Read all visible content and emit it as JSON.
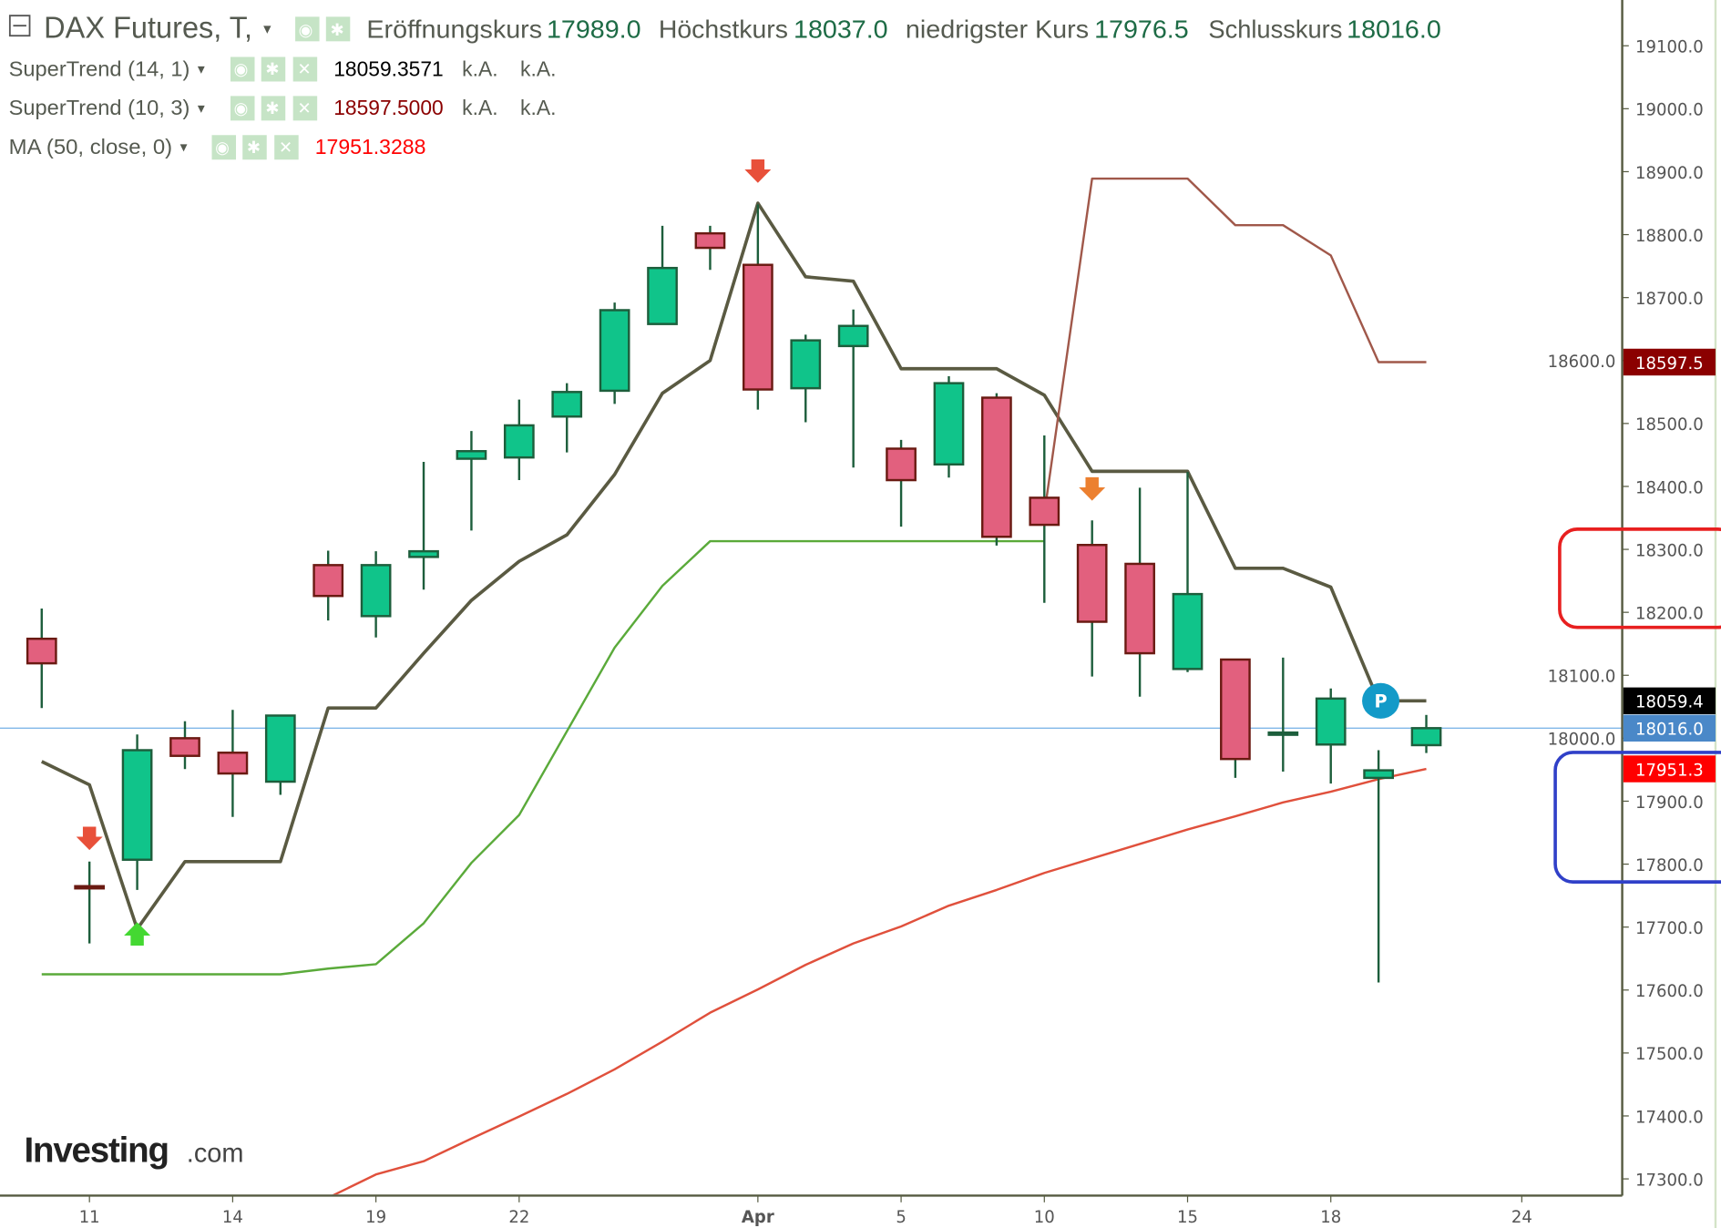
{
  "header": {
    "title": "DAX Futures, T,",
    "open_label": "Eröffnungskurs",
    "open_value": "17989.0",
    "high_label": "Höchstkurs",
    "high_value": "18037.0",
    "low_label": "niedrigster Kurs",
    "low_value": "17976.5",
    "close_label": "Schlusskurs",
    "close_value": "18016.0"
  },
  "indicators": [
    {
      "name": "SuperTrend (14, 1)",
      "value": "18059.3571",
      "extra1": "k.A.",
      "extra2": "k.A.",
      "color": "#000000"
    },
    {
      "name": "SuperTrend (10, 3)",
      "value": "18597.5000",
      "extra1": "k.A.",
      "extra2": "k.A.",
      "color": "#8b0000"
    },
    {
      "name": "MA (50, close, 0)",
      "value": "17951.3288",
      "color": "#ff0000"
    }
  ],
  "icons": {
    "eye": "◉",
    "gear": "✱",
    "close": "✕",
    "caret": "▾",
    "collapse": "⊟"
  },
  "logo": {
    "brand": "Investing",
    "suffix": ".com"
  },
  "marker": {
    "label": "P"
  },
  "price_labels": [
    {
      "text": "18597.5",
      "value": 18597.5,
      "color": "#8b0000"
    },
    {
      "text": "18059.4",
      "value": 18059.4,
      "color": "#000000"
    },
    {
      "text": "18016.0",
      "value": 18016.0,
      "color": "#4a88c8"
    },
    {
      "text": "17951.3",
      "value": 17951.3,
      "color": "#ff0000"
    }
  ],
  "chart_data": {
    "type": "candlestick",
    "title": "DAX Futures, T",
    "ylim": [
      17300,
      19100
    ],
    "y_ticks": [
      "19100.0",
      "19000.0",
      "18900.0",
      "18800.0",
      "18700.0",
      "18600.0",
      "18500.0",
      "18400.0",
      "18300.0",
      "18200.0",
      "18100.0",
      "18000.0",
      "17900.0",
      "17800.0",
      "17700.0",
      "17600.0",
      "17500.0",
      "17400.0",
      "17300.0"
    ],
    "y_tick_values": [
      19100,
      19000,
      18900,
      18800,
      18700,
      18600,
      18500,
      18400,
      18300,
      18200,
      18100,
      18000,
      17900,
      17800,
      17700,
      17600,
      17500,
      17400,
      17300
    ],
    "x_labels": [
      {
        "text": "11",
        "index": 1
      },
      {
        "text": "14",
        "index": 4
      },
      {
        "text": "19",
        "index": 7
      },
      {
        "text": "22",
        "index": 10
      },
      {
        "text": "Apr",
        "index": 15,
        "bold": true
      },
      {
        "text": "5",
        "index": 18
      },
      {
        "text": "10",
        "index": 21
      },
      {
        "text": "15",
        "index": 24
      },
      {
        "text": "18",
        "index": 27
      },
      {
        "text": "24",
        "index": 31
      }
    ],
    "candles": [
      [
        18158,
        18206,
        18048,
        18119
      ],
      [
        17765,
        17804,
        17674,
        17762
      ],
      [
        17807,
        18006,
        17759,
        17981
      ],
      [
        18000,
        18027,
        17951,
        17972
      ],
      [
        17977,
        18045,
        17875,
        17944
      ],
      [
        17931,
        18036,
        17910,
        18036
      ],
      [
        18275,
        18298,
        18187,
        18226
      ],
      [
        18194,
        18297,
        18160,
        18275
      ],
      [
        18288,
        18439,
        18236,
        18297
      ],
      [
        18444,
        18488,
        18330,
        18456
      ],
      [
        18446,
        18538,
        18410,
        18497
      ],
      [
        18511,
        18564,
        18454,
        18550
      ],
      [
        18552,
        18692,
        18531,
        18680
      ],
      [
        18658,
        18814,
        18657,
        18747
      ],
      [
        18802,
        18814,
        18744,
        18779
      ],
      [
        18752,
        18848,
        18522,
        18554
      ],
      [
        18556,
        18641,
        18502,
        18632
      ],
      [
        18623,
        18681,
        18430,
        18655
      ],
      [
        18460,
        18474,
        18336,
        18410
      ],
      [
        18435,
        18575,
        18414,
        18564
      ],
      [
        18541,
        18548,
        18306,
        18320
      ],
      [
        18382,
        18481,
        18215,
        18339
      ],
      [
        18307,
        18346,
        18098,
        18185
      ],
      [
        18277,
        18398,
        18066,
        18135
      ],
      [
        18110,
        18423,
        18105,
        18229
      ],
      [
        18125,
        18125,
        17937,
        17967
      ],
      [
        18009,
        18128,
        17947,
        18009
      ],
      [
        17990,
        18079,
        17928,
        18063
      ],
      [
        17937,
        17981,
        17612,
        17949
      ],
      [
        17989,
        18037,
        17976.5,
        18016
      ]
    ],
    "candle_fields": [
      "open",
      "high",
      "low",
      "close"
    ],
    "series": [
      {
        "name": "SuperTrend (14, 1)",
        "color": "#5a5a42",
        "points": [
          [
            0,
            17963
          ],
          [
            1,
            17926
          ],
          [
            2,
            17697
          ],
          [
            3,
            17804
          ],
          [
            5,
            17804
          ],
          [
            6,
            18048
          ],
          [
            7,
            18048
          ],
          [
            8,
            18135
          ],
          [
            9,
            18219
          ],
          [
            10,
            18281
          ],
          [
            11,
            18323
          ],
          [
            12,
            18419
          ],
          [
            13,
            18548
          ],
          [
            14,
            18600
          ],
          [
            15,
            18850
          ],
          [
            16,
            18733
          ],
          [
            17,
            18726
          ],
          [
            18,
            18587
          ],
          [
            20,
            18587
          ],
          [
            21,
            18545
          ],
          [
            22,
            18424
          ],
          [
            24,
            18424
          ],
          [
            25,
            18270
          ],
          [
            26,
            18270
          ],
          [
            27,
            18240
          ],
          [
            28,
            18059.4
          ],
          [
            29,
            18059.4
          ]
        ]
      },
      {
        "name": "SuperTrend (10, 3) support",
        "color": "#5aaa3a",
        "points": [
          [
            0,
            17625
          ],
          [
            5,
            17625
          ],
          [
            6,
            17634
          ],
          [
            7,
            17641
          ],
          [
            8,
            17706
          ],
          [
            9,
            17802
          ],
          [
            10,
            17878
          ],
          [
            11,
            18011
          ],
          [
            12,
            18144
          ],
          [
            13,
            18242
          ],
          [
            14,
            18313
          ],
          [
            21,
            18313
          ]
        ]
      },
      {
        "name": "SuperTrend (10, 3) resistance",
        "color": "#a0584a",
        "points": [
          [
            21,
            18357
          ],
          [
            22,
            18889
          ],
          [
            24,
            18889
          ],
          [
            25,
            18815
          ],
          [
            26,
            18815
          ],
          [
            27,
            18767
          ],
          [
            28,
            18597.5
          ],
          [
            29,
            18597.5
          ]
        ]
      },
      {
        "name": "MA (50, close, 0)",
        "color": "#e0503c",
        "points": [
          [
            6,
            17270
          ],
          [
            7,
            17307
          ],
          [
            8,
            17328
          ],
          [
            9,
            17364
          ],
          [
            10,
            17399
          ],
          [
            11,
            17435
          ],
          [
            12,
            17474
          ],
          [
            13,
            17518
          ],
          [
            14,
            17564
          ],
          [
            15,
            17601
          ],
          [
            16,
            17640
          ],
          [
            17,
            17674
          ],
          [
            18,
            17701
          ],
          [
            19,
            17734
          ],
          [
            20,
            17759
          ],
          [
            21,
            17786
          ],
          [
            22,
            17809
          ],
          [
            23,
            17832
          ],
          [
            24,
            17855
          ],
          [
            25,
            17876
          ],
          [
            26,
            17898
          ],
          [
            27,
            17915
          ],
          [
            28,
            17935
          ],
          [
            29,
            17951.3
          ]
        ]
      }
    ],
    "signals": [
      {
        "type": "sell",
        "index": 1,
        "value": 17840,
        "color": "#e8503a"
      },
      {
        "type": "buy",
        "index": 2,
        "value": 17690,
        "color": "#44d832"
      },
      {
        "type": "sell",
        "index": 15,
        "value": 18900,
        "color": "#e8503a"
      },
      {
        "type": "sell",
        "index": 22,
        "value": 18395,
        "color": "#ec8030"
      }
    ],
    "marker_index": 28,
    "marker_value": 18059.4,
    "current_price": 18016.0,
    "colors": {
      "up": "#10c48a",
      "up_border": "#1d5e3c",
      "down": "#e2607e",
      "down_border": "#6a1a12",
      "wick": "#1d5e3c",
      "price_line": "#7fb6e8"
    }
  }
}
